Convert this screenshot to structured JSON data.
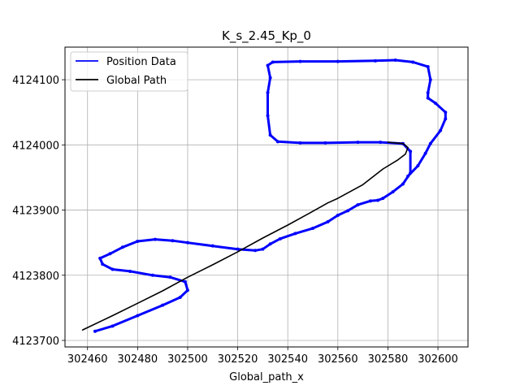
{
  "chart_data": {
    "type": "line",
    "title": "K_s_2.45_Kp_0",
    "xlabel": "Global_path_x",
    "ylabel": "",
    "xlim": [
      302451,
      302612
    ],
    "ylim": [
      4123690,
      4124150
    ],
    "xticks": [
      "302460",
      "302480",
      "302500",
      "302520",
      "302540",
      "302560",
      "302580",
      "302600"
    ],
    "yticks": [
      "4123700",
      "4123800",
      "4123900",
      "4124000",
      "4124100"
    ],
    "grid": true,
    "legend_position": "upper-left",
    "series": [
      {
        "name": "Position Data",
        "color": "#0000ff",
        "x": [
          302463,
          302470,
          302480,
          302490,
          302497,
          302500,
          302499,
          302493,
          302486,
          302477,
          302470,
          302466,
          302465,
          302469,
          302474,
          302480,
          302487,
          302494,
          302500,
          302510,
          302520,
          302527,
          302530,
          302533,
          302537,
          302543,
          302550,
          302556,
          302560,
          302564,
          302568,
          302573,
          302576,
          302578,
          302582,
          302586,
          302589,
          302589,
          302586,
          302577,
          302568,
          302555,
          302545,
          302536,
          302533,
          302532,
          302532,
          302533,
          302532,
          302534,
          302545,
          302560,
          302575,
          302583,
          302590,
          302596,
          302597,
          302596,
          302596,
          302599,
          302603,
          302603,
          302601,
          302597,
          302595,
          302592,
          302588
        ],
        "y": [
          4123714,
          4123722,
          4123738,
          4123754,
          4123766,
          4123777,
          4123790,
          4123797,
          4123800,
          4123806,
          4123809,
          4123817,
          4123826,
          4123833,
          4123843,
          4123852,
          4123855,
          4123853,
          4123850,
          4123845,
          4123840,
          4123838,
          4123840,
          4123848,
          4123856,
          4123864,
          4123872,
          4123882,
          4123892,
          4123899,
          4123908,
          4123914,
          4123915,
          4123918,
          4123928,
          4123940,
          4123957,
          4123990,
          4124002,
          4124004,
          4124004,
          4124003,
          4124003,
          4124005,
          4124015,
          4124045,
          4124080,
          4124103,
          4124122,
          4124127,
          4124128,
          4124128,
          4124129,
          4124130,
          4124127,
          4124120,
          4124100,
          4124080,
          4124072,
          4124064,
          4124050,
          4124040,
          4124022,
          4124002,
          4123987,
          4123968,
          4123952
        ]
      },
      {
        "name": "Global Path",
        "color": "#000000",
        "x": [
          302458,
          302470,
          302480,
          302490,
          302500,
          302510,
          302520,
          302530,
          302540,
          302550,
          302556,
          302560,
          302570,
          302578,
          302584,
          302587,
          302588,
          302586,
          302580
        ],
        "y": [
          4123716,
          4123738,
          4123757,
          4123776,
          4123797,
          4123816,
          4123836,
          4123857,
          4123877,
          4123898,
          4123911,
          4123918,
          4123939,
          4123963,
          4123977,
          4123986,
          4123996,
          4124002,
          4124004
        ]
      }
    ]
  }
}
